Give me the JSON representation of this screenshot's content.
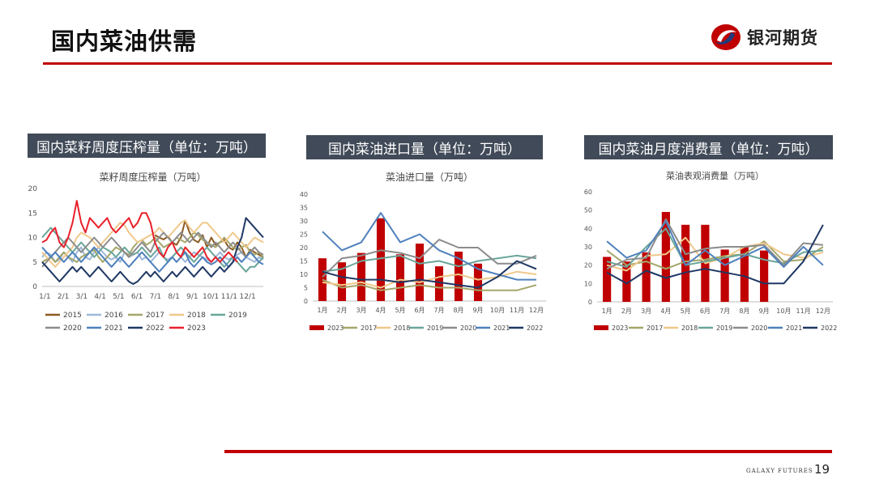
{
  "page": {
    "title": "国内菜油供需",
    "logo_text": "银河期货",
    "footer_brand": "GALAXY FUTURES",
    "page_number": "19"
  },
  "colors": {
    "accent": "#c00000",
    "title_bg": "#404a58"
  },
  "panels": [
    {
      "title": "国内菜籽周度压榨量（单位：万吨）"
    },
    {
      "title": "国内菜油进口量（单位：万吨）"
    },
    {
      "title": "国内菜油月度消费量（单位：万吨）"
    }
  ],
  "chart_data": [
    {
      "type": "line",
      "title": "菜籽周度压榨量（万吨）",
      "x_ticks": [
        "1/1",
        "2/1",
        "3/1",
        "4/1",
        "5/1",
        "6/1",
        "7/1",
        "8/1",
        "9/1",
        "10/1",
        "11/1",
        "12/1"
      ],
      "ylim": [
        0,
        20
      ],
      "y_ticks": [
        0,
        5,
        10,
        15,
        20
      ],
      "grid": false,
      "legend": "bottom",
      "series": [
        {
          "name": "2015",
          "color": "#8c5a22",
          "values": [
            null,
            null,
            null,
            null,
            null,
            null,
            null,
            null,
            null,
            null,
            null,
            null,
            null,
            null,
            null,
            null,
            null,
            null,
            null,
            null,
            null,
            null,
            null,
            null,
            null,
            null,
            10.5,
            10,
            9.6,
            10.2,
            9,
            8.5,
            10,
            13.5,
            11,
            9.5,
            9,
            10.5,
            8,
            10,
            8.5,
            9,
            9.5,
            8,
            7.5,
            9,
            8,
            6,
            7.5,
            7,
            6.5,
            6
          ]
        },
        {
          "name": "2016",
          "color": "#9db8d9",
          "values": [
            6,
            7,
            6.5,
            5,
            5.5,
            7,
            6,
            5,
            7,
            8,
            6,
            5.5,
            7,
            8,
            7,
            6,
            5.5,
            6,
            5,
            7,
            6,
            6.5,
            7,
            5.5,
            6,
            5,
            6,
            7,
            6,
            5.5,
            6,
            7,
            6,
            5,
            6,
            7,
            6.5,
            6,
            5.5,
            5,
            6,
            7,
            6,
            5.5,
            6,
            6.5,
            7,
            6,
            5.5,
            5,
            6,
            5.5
          ]
        },
        {
          "name": "2017",
          "color": "#a5a66a",
          "values": [
            5,
            5.5,
            6,
            5,
            6,
            7,
            6,
            5.5,
            5,
            6,
            6.5,
            7,
            7.5,
            6,
            5,
            6,
            7,
            8,
            7.5,
            7,
            6.5,
            8,
            9,
            9.5,
            8.5,
            9,
            10,
            9,
            8,
            8.5,
            9,
            10,
            9.5,
            9,
            10,
            11,
            10.5,
            9.5,
            9,
            8.5,
            8,
            9,
            10,
            9,
            8,
            7.5,
            8,
            8.5,
            7,
            6.5,
            7,
            6
          ]
        },
        {
          "name": "2018",
          "color": "#f0c88a",
          "values": [
            7,
            6,
            5,
            4,
            5,
            6,
            7,
            8,
            10,
            11,
            10.5,
            10,
            9,
            8,
            9,
            10,
            11,
            12,
            13,
            12.5,
            11,
            10,
            9,
            9.5,
            10,
            10.5,
            11,
            12,
            11,
            10,
            11,
            12,
            13,
            13.5,
            12,
            11,
            12,
            13,
            13,
            12,
            11,
            10,
            9,
            10,
            11,
            10,
            9,
            8,
            9,
            10,
            9.5,
            9
          ]
        },
        {
          "name": "2019",
          "color": "#6aa69a",
          "values": [
            10,
            11,
            12,
            11,
            10,
            9,
            8,
            7,
            8,
            9,
            8,
            7,
            6,
            7,
            8,
            7.5,
            7,
            6,
            7,
            8,
            7,
            6.5,
            7,
            8,
            7,
            6,
            7,
            8,
            6,
            5,
            6,
            7,
            8,
            7,
            6,
            5,
            6,
            7,
            8,
            7,
            6,
            5,
            4,
            5,
            6,
            5,
            4,
            3,
            4,
            4,
            5,
            6
          ]
        },
        {
          "name": "2020",
          "color": "#8c8c8c",
          "values": [
            4,
            5,
            6,
            7,
            8,
            9,
            10,
            9,
            8,
            7,
            8,
            9,
            10,
            9,
            8,
            9,
            10,
            9,
            8,
            7,
            6,
            7,
            8,
            9,
            8,
            7,
            9,
            10,
            11,
            10,
            9,
            10,
            11,
            10,
            9,
            10,
            11,
            10,
            9,
            8,
            9,
            8,
            7,
            8,
            9,
            8,
            7,
            6,
            7,
            8,
            7,
            6.5
          ]
        },
        {
          "name": "2021",
          "color": "#4f81bd",
          "values": [
            8,
            7,
            6,
            7,
            6,
            5,
            6,
            7,
            6,
            5,
            6,
            7,
            8,
            7,
            6,
            5,
            4,
            5,
            6,
            5,
            4,
            5,
            6,
            7,
            6,
            5,
            4,
            3,
            4,
            5,
            6,
            5,
            6,
            7,
            5,
            4,
            5,
            6,
            5,
            4.5,
            5,
            6,
            5,
            4,
            5,
            6,
            5,
            6,
            7,
            6,
            5,
            4.5
          ]
        },
        {
          "name": "2022",
          "color": "#1f3864",
          "values": [
            5,
            4,
            3,
            2,
            1,
            2,
            3,
            4,
            3,
            4,
            3,
            2,
            3,
            4,
            3,
            2,
            1,
            2,
            3,
            2,
            1,
            0.5,
            1,
            2,
            3,
            2,
            3,
            2,
            1,
            2,
            3,
            2,
            3,
            4,
            3,
            2,
            3,
            4,
            3,
            2,
            3,
            4,
            3,
            4,
            5,
            8,
            10,
            14,
            13,
            12,
            11,
            10
          ]
        },
        {
          "name": "2023",
          "color": "#e8212b",
          "values": [
            9,
            9.5,
            11,
            12,
            9,
            8,
            10,
            13,
            17.5,
            13,
            11,
            14,
            13,
            12,
            13,
            14,
            12,
            11,
            12,
            13,
            14,
            12,
            13,
            15,
            15,
            13,
            9,
            7,
            6,
            8,
            9,
            7,
            6,
            8,
            7,
            6,
            7,
            8,
            6,
            5,
            6,
            5,
            6,
            7,
            6,
            5,
            null,
            null,
            null,
            null,
            null,
            null
          ]
        }
      ]
    },
    {
      "type": "bar+line",
      "title": "菜油进口量（万吨）",
      "categories": [
        "1月",
        "2月",
        "3月",
        "4月",
        "5月",
        "6月",
        "7月",
        "8月",
        "9月",
        "10月",
        "11月",
        "12月"
      ],
      "ylim": [
        0,
        40
      ],
      "y_ticks": [
        0,
        5,
        10,
        15,
        20,
        25,
        30,
        35,
        40
      ],
      "grid": false,
      "legend": "bottom",
      "bars": {
        "name": "2023",
        "color": "#c00000",
        "values": [
          16,
          14.5,
          18,
          31,
          17.5,
          21.5,
          13,
          18.5,
          14,
          null,
          null,
          null
        ]
      },
      "series": [
        {
          "name": "2017",
          "color": "#a5a66a",
          "values": [
            8,
            5,
            6,
            4,
            5,
            6,
            5,
            5,
            4,
            4,
            4,
            6
          ]
        },
        {
          "name": "2018",
          "color": "#f0c88a",
          "values": [
            7,
            6,
            7,
            5,
            8,
            7,
            9,
            10,
            8,
            9,
            11,
            10
          ]
        },
        {
          "name": "2019",
          "color": "#6aa69a",
          "values": [
            11,
            12,
            15,
            16,
            17,
            14,
            15,
            13,
            15,
            16,
            17,
            16
          ]
        },
        {
          "name": "2020",
          "color": "#8c8c8c",
          "values": [
            9,
            16,
            17,
            19,
            18,
            16,
            23,
            20,
            20,
            14,
            14,
            17
          ]
        },
        {
          "name": "2021",
          "color": "#4f81bd",
          "values": [
            26,
            19,
            22,
            33,
            22,
            25,
            19,
            16,
            12,
            10,
            8,
            8
          ]
        },
        {
          "name": "2022",
          "color": "#1f3864",
          "values": [
            11,
            9,
            8,
            8,
            7,
            8,
            7,
            6,
            5,
            9,
            15,
            12
          ]
        }
      ]
    },
    {
      "type": "bar+line",
      "title": "菜油表观消费量（万吨）",
      "categories": [
        "1月",
        "2月",
        "3月",
        "4月",
        "5月",
        "6月",
        "7月",
        "8月",
        "9月",
        "10月",
        "11月",
        "12月"
      ],
      "ylim": [
        0,
        60
      ],
      "y_ticks": [
        0,
        10,
        20,
        30,
        40,
        50,
        60
      ],
      "grid": false,
      "legend": "bottom",
      "bars": {
        "name": "2023",
        "color": "#c00000",
        "values": [
          24.5,
          22,
          27,
          49,
          42,
          42,
          28.5,
          30,
          28,
          null,
          null,
          null
        ]
      },
      "series": [
        {
          "name": "2017",
          "color": "#a5a66a",
          "values": [
            28,
            20,
            22,
            18,
            22,
            23,
            25,
            26,
            33,
            22,
            23,
            30
          ]
        },
        {
          "name": "2018",
          "color": "#f0c88a",
          "values": [
            20,
            17,
            25,
            26,
            35,
            21,
            24,
            30,
            32,
            26,
            24,
            27
          ]
        },
        {
          "name": "2019",
          "color": "#6aa69a",
          "values": [
            22,
            19,
            30,
            40,
            20,
            22,
            24,
            26,
            23,
            21,
            27,
            28
          ]
        },
        {
          "name": "2020",
          "color": "#8c8c8c",
          "values": [
            18,
            23,
            24,
            45,
            26,
            29,
            30,
            30,
            31,
            20,
            32,
            31
          ]
        },
        {
          "name": "2021",
          "color": "#4f81bd",
          "values": [
            33,
            24,
            28,
            44,
            20,
            28,
            20,
            25,
            30,
            19,
            30,
            20
          ]
        },
        {
          "name": "2022",
          "color": "#1f3864",
          "values": [
            16,
            10,
            17,
            13,
            16,
            18,
            16,
            14,
            10,
            10,
            22,
            42
          ]
        }
      ]
    }
  ]
}
